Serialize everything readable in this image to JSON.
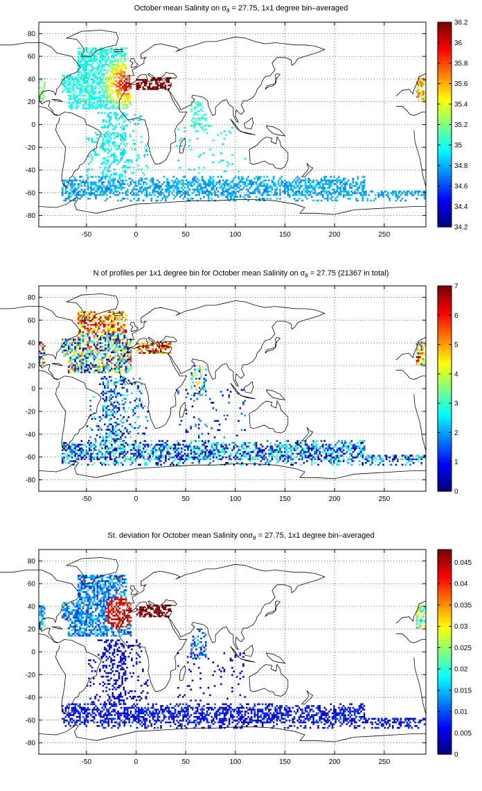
{
  "figure": {
    "panels": [
      {
        "title_prefix": "October mean Salinity on ",
        "title_sigma": "σ",
        "title_sub": "θ",
        "title_suffix": " = 27.75, 1x1 degree bin–averaged",
        "colorbar": {
          "ticks": [
            "34.2",
            "34.4",
            "34.6",
            "34.8",
            "35",
            "35.2",
            "35.4",
            "35.6",
            "35.8",
            "36",
            "36.2"
          ],
          "min": 34.2,
          "max": 36.2
        },
        "field": "salinity"
      },
      {
        "title_prefix": "N of profiles per 1x1 degree bin for October mean Salinity on ",
        "title_sigma": "σ",
        "title_sub": "θ",
        "title_suffix": " = 27.75 (21367 in total)",
        "colorbar": {
          "ticks": [
            "0",
            "1",
            "2",
            "3",
            "4",
            "5",
            "6",
            "7"
          ],
          "min": 0,
          "max": 7
        },
        "field": "count"
      },
      {
        "title_prefix": "St. deviation for October mean Salinity on",
        "title_sigma": "σ",
        "title_sub": "θ",
        "title_suffix": " = 27.75, 1x1 degree bin–averaged",
        "colorbar": {
          "ticks": [
            "0",
            "0.005",
            "0.01",
            "0.015",
            "0.02",
            "0.025",
            "0.03",
            "0.035",
            "0.04",
            "0.045"
          ],
          "min": 0,
          "max": 0.048
        },
        "field": "std"
      }
    ],
    "axes": {
      "xticks": [
        "-50",
        "0",
        "50",
        "100",
        "150",
        "200",
        "250"
      ],
      "xvalues": [
        -50,
        0,
        50,
        100,
        150,
        200,
        250
      ],
      "yticks": [
        "80",
        "60",
        "40",
        "20",
        "0",
        "-20",
        "-40",
        "-60",
        "-80"
      ],
      "yvalues": [
        80,
        60,
        40,
        20,
        0,
        -20,
        -40,
        -60,
        -80
      ],
      "xlim": [
        -98,
        292
      ],
      "ylim": [
        -90,
        90
      ],
      "grid": "dotted"
    },
    "colormap": "jet"
  }
}
